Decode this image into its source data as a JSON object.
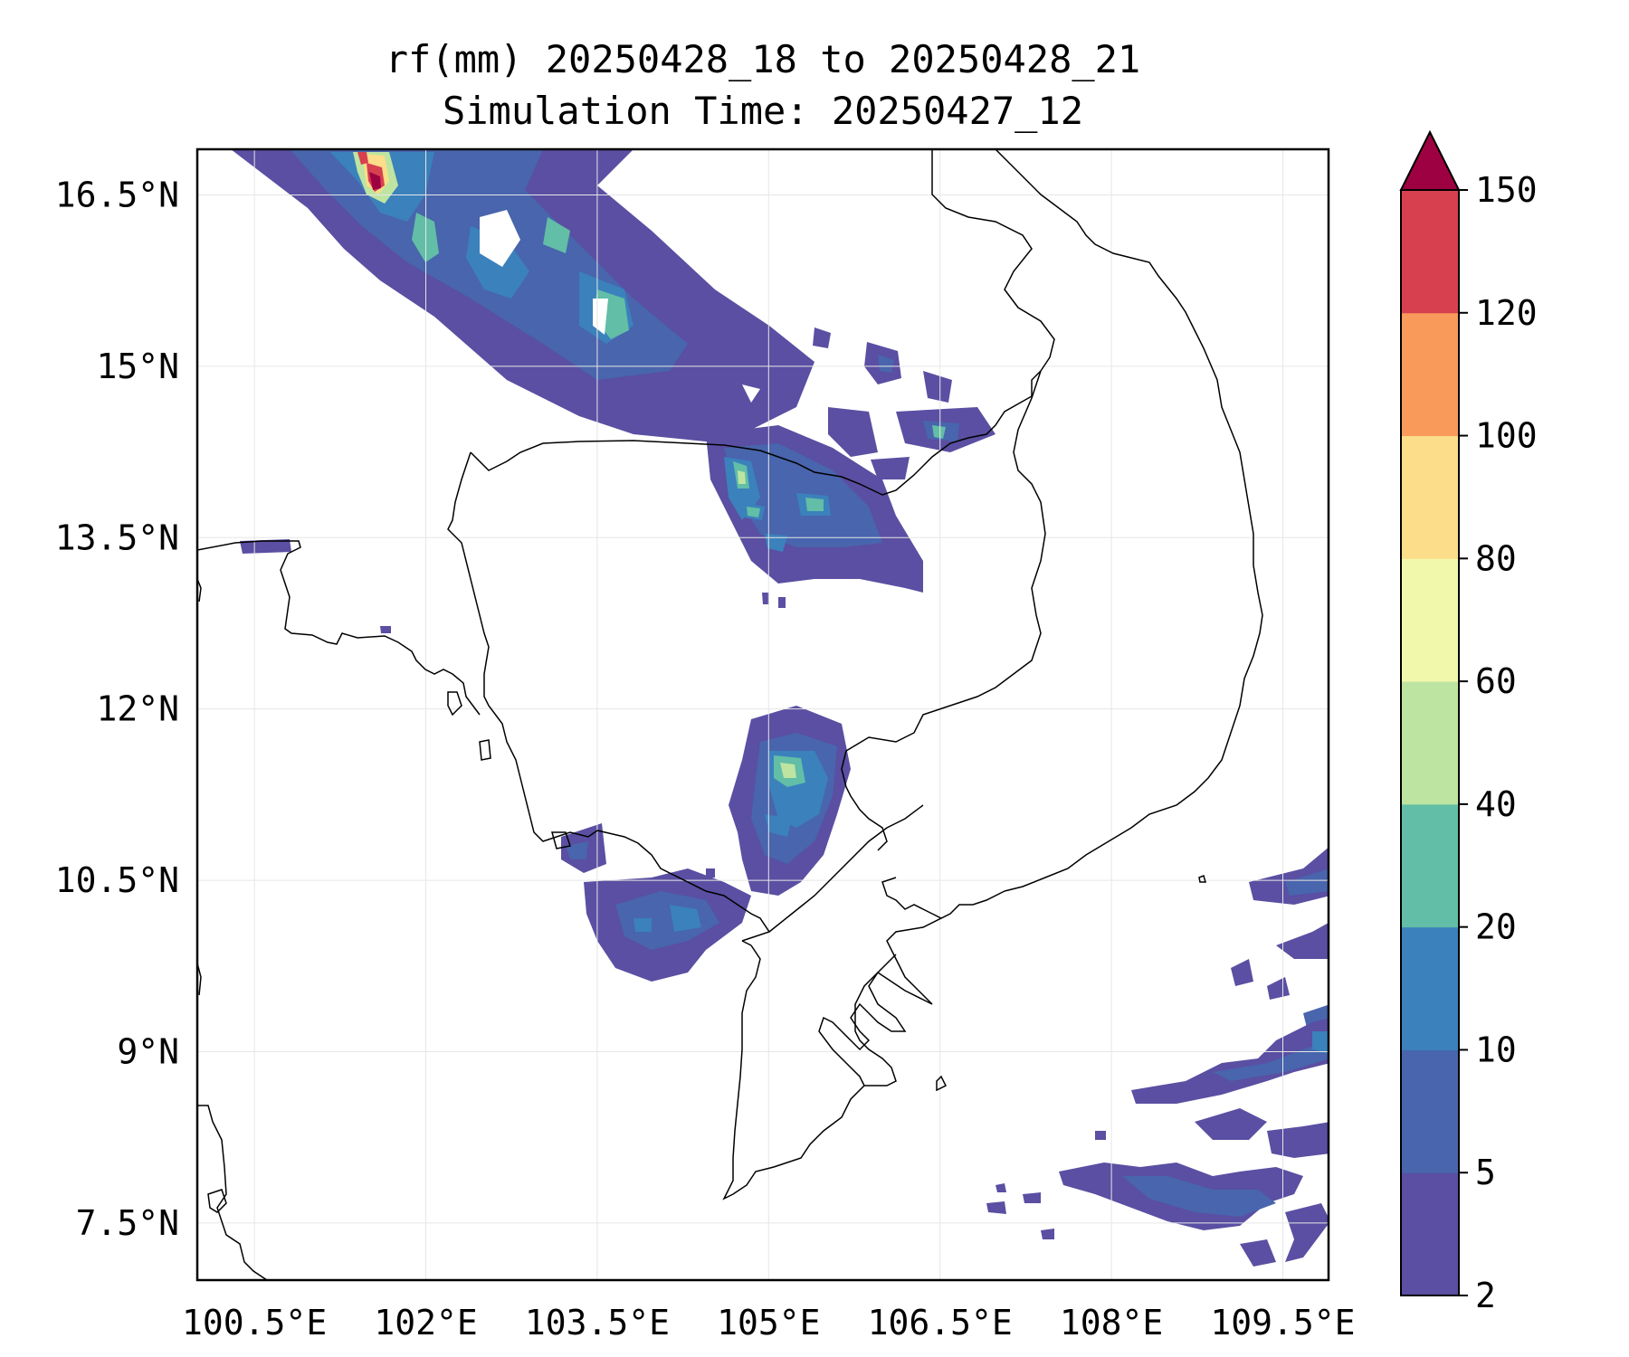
{
  "title_line1": "rf(mm) 20250428_18 to 20250428_21",
  "title_line2": "Simulation Time: 20250427_12",
  "map": {
    "lon_range": [
      100.0,
      109.9
    ],
    "lat_range": [
      7.0,
      16.9
    ],
    "lon_ticks": [
      100.5,
      102,
      103.5,
      105,
      106.5,
      108,
      109.5
    ],
    "lat_ticks": [
      7.5,
      9,
      10.5,
      12,
      13.5,
      15,
      16.5
    ],
    "lon_tick_labels": [
      "100.5°E",
      "102°E",
      "103.5°E",
      "105°E",
      "106.5°E",
      "108°E",
      "109.5°E"
    ],
    "lat_tick_labels": [
      "7.5°N",
      "9°N",
      "10.5°N",
      "12°N",
      "13.5°N",
      "15°N",
      "16.5°N"
    ],
    "gridlines": true,
    "coastline_color": "#000000"
  },
  "colorbar": {
    "levels": [
      2,
      5,
      10,
      20,
      40,
      60,
      80,
      100,
      120,
      150
    ],
    "tick_labels": [
      "2",
      "5",
      "10",
      "20",
      "40",
      "60",
      "80",
      "100",
      "120",
      "150"
    ],
    "colors": [
      "#5a4fa2",
      "#4865ad",
      "#3b81bc",
      "#62bea6",
      "#bde4a1",
      "#f1f8ab",
      "#fbdd8a",
      "#f9995a",
      "#d7404f"
    ],
    "extend_color": "#9e0142",
    "extend": "max"
  }
}
